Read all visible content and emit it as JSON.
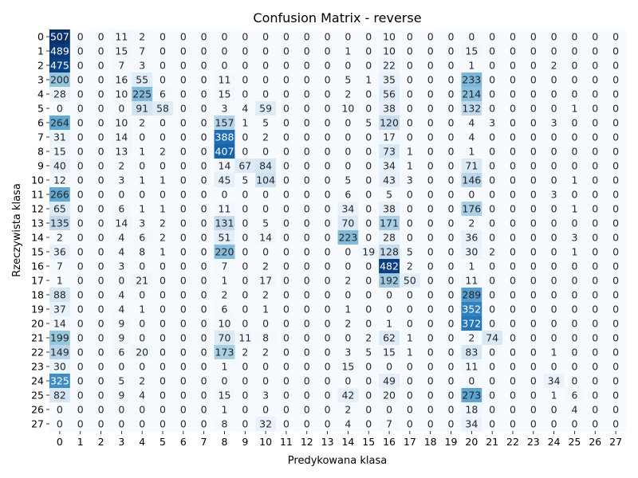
{
  "chart_data": {
    "type": "heatmap",
    "title": "Confusion Matrix - reverse",
    "xlabel": "Predykowana klasa",
    "ylabel": "Rzeczywista klasa",
    "x_ticks": [
      "0",
      "1",
      "2",
      "3",
      "4",
      "5",
      "6",
      "7",
      "8",
      "9",
      "10",
      "11",
      "12",
      "13",
      "14",
      "15",
      "16",
      "17",
      "18",
      "19",
      "20",
      "21",
      "22",
      "23",
      "24",
      "25",
      "26",
      "27"
    ],
    "y_ticks": [
      "0",
      "1",
      "2",
      "3",
      "4",
      "5",
      "6",
      "7",
      "8",
      "9",
      "10",
      "11",
      "12",
      "13",
      "14",
      "15",
      "16",
      "17",
      "18",
      "19",
      "20",
      "21",
      "22",
      "23",
      "24",
      "25",
      "26",
      "27"
    ],
    "colormap": "Blues",
    "vmin": 0,
    "vmax": 507,
    "colorbar": false,
    "values": [
      [
        507,
        0,
        0,
        11,
        2,
        0,
        0,
        0,
        0,
        0,
        0,
        0,
        0,
        0,
        0,
        0,
        10,
        0,
        0,
        0,
        0,
        0,
        0,
        0,
        0,
        0,
        0,
        0
      ],
      [
        489,
        0,
        0,
        15,
        7,
        0,
        0,
        0,
        0,
        0,
        0,
        0,
        0,
        0,
        1,
        0,
        10,
        0,
        0,
        0,
        15,
        0,
        0,
        0,
        0,
        0,
        0,
        0
      ],
      [
        475,
        0,
        0,
        7,
        3,
        0,
        0,
        0,
        0,
        0,
        0,
        0,
        0,
        0,
        0,
        0,
        22,
        0,
        0,
        0,
        1,
        0,
        0,
        0,
        2,
        0,
        0,
        0
      ],
      [
        200,
        0,
        0,
        16,
        55,
        0,
        0,
        0,
        11,
        0,
        0,
        0,
        0,
        0,
        5,
        1,
        35,
        0,
        0,
        0,
        233,
        0,
        0,
        0,
        0,
        0,
        0,
        0
      ],
      [
        28,
        0,
        0,
        10,
        225,
        6,
        0,
        0,
        15,
        0,
        0,
        0,
        0,
        0,
        2,
        0,
        56,
        0,
        0,
        0,
        214,
        0,
        0,
        0,
        0,
        0,
        0,
        0
      ],
      [
        0,
        0,
        0,
        0,
        91,
        58,
        0,
        0,
        3,
        4,
        59,
        0,
        0,
        0,
        10,
        0,
        38,
        0,
        0,
        0,
        132,
        0,
        0,
        0,
        0,
        1,
        0,
        0
      ],
      [
        264,
        0,
        0,
        10,
        2,
        0,
        0,
        0,
        157,
        1,
        5,
        0,
        0,
        0,
        0,
        5,
        120,
        0,
        0,
        0,
        4,
        3,
        0,
        0,
        3,
        0,
        0,
        0
      ],
      [
        31,
        0,
        0,
        14,
        0,
        0,
        0,
        0,
        388,
        0,
        2,
        0,
        0,
        0,
        0,
        0,
        17,
        0,
        0,
        0,
        4,
        0,
        0,
        0,
        0,
        0,
        0,
        0
      ],
      [
        15,
        0,
        0,
        13,
        1,
        2,
        0,
        0,
        407,
        0,
        0,
        0,
        0,
        0,
        0,
        0,
        73,
        1,
        0,
        0,
        1,
        0,
        0,
        0,
        0,
        0,
        0,
        0
      ],
      [
        40,
        0,
        0,
        2,
        0,
        0,
        0,
        0,
        14,
        67,
        84,
        0,
        0,
        0,
        0,
        0,
        34,
        1,
        0,
        0,
        71,
        0,
        0,
        0,
        0,
        0,
        0,
        0
      ],
      [
        12,
        0,
        0,
        3,
        1,
        1,
        0,
        0,
        45,
        5,
        104,
        0,
        0,
        0,
        5,
        0,
        43,
        3,
        0,
        0,
        146,
        0,
        0,
        0,
        0,
        1,
        0,
        0
      ],
      [
        266,
        0,
        0,
        0,
        0,
        0,
        0,
        0,
        0,
        0,
        0,
        0,
        0,
        0,
        6,
        0,
        5,
        0,
        0,
        0,
        0,
        0,
        0,
        0,
        3,
        0,
        0,
        0
      ],
      [
        65,
        0,
        0,
        6,
        1,
        1,
        0,
        0,
        11,
        0,
        0,
        0,
        0,
        0,
        34,
        0,
        38,
        0,
        0,
        0,
        176,
        0,
        0,
        0,
        0,
        1,
        0,
        0
      ],
      [
        135,
        0,
        0,
        14,
        3,
        2,
        0,
        0,
        131,
        0,
        5,
        0,
        0,
        0,
        70,
        0,
        171,
        0,
        0,
        0,
        2,
        0,
        0,
        0,
        0,
        0,
        0,
        0
      ],
      [
        2,
        0,
        0,
        4,
        6,
        2,
        0,
        0,
        51,
        0,
        14,
        0,
        0,
        0,
        223,
        0,
        28,
        0,
        0,
        0,
        36,
        0,
        0,
        0,
        0,
        3,
        0,
        0
      ],
      [
        36,
        0,
        0,
        4,
        8,
        1,
        0,
        0,
        220,
        0,
        0,
        0,
        0,
        0,
        0,
        19,
        128,
        5,
        0,
        0,
        30,
        2,
        0,
        0,
        0,
        1,
        0,
        0
      ],
      [
        7,
        0,
        0,
        3,
        0,
        0,
        0,
        0,
        7,
        0,
        2,
        0,
        0,
        0,
        0,
        0,
        482,
        2,
        0,
        0,
        1,
        0,
        0,
        0,
        0,
        0,
        0,
        0
      ],
      [
        1,
        0,
        0,
        0,
        21,
        0,
        0,
        0,
        1,
        0,
        17,
        0,
        0,
        0,
        2,
        0,
        192,
        50,
        0,
        0,
        11,
        0,
        0,
        0,
        0,
        0,
        0,
        0
      ],
      [
        88,
        0,
        0,
        4,
        0,
        0,
        0,
        0,
        2,
        0,
        2,
        0,
        0,
        0,
        0,
        0,
        0,
        0,
        0,
        0,
        289,
        0,
        0,
        0,
        0,
        0,
        0,
        0
      ],
      [
        37,
        0,
        0,
        4,
        1,
        0,
        0,
        0,
        6,
        0,
        1,
        0,
        0,
        0,
        1,
        0,
        0,
        0,
        0,
        0,
        352,
        0,
        0,
        0,
        0,
        0,
        0,
        0
      ],
      [
        14,
        0,
        0,
        9,
        0,
        0,
        0,
        0,
        10,
        0,
        0,
        0,
        0,
        0,
        2,
        0,
        1,
        0,
        0,
        0,
        372,
        0,
        0,
        0,
        0,
        0,
        0,
        0
      ],
      [
        199,
        0,
        0,
        9,
        0,
        0,
        0,
        0,
        70,
        11,
        8,
        0,
        0,
        0,
        0,
        2,
        62,
        1,
        0,
        0,
        2,
        74,
        0,
        0,
        0,
        0,
        0,
        0
      ],
      [
        149,
        0,
        0,
        6,
        20,
        0,
        0,
        0,
        173,
        2,
        2,
        0,
        0,
        0,
        3,
        5,
        15,
        1,
        0,
        0,
        83,
        0,
        0,
        0,
        1,
        0,
        0,
        0
      ],
      [
        30,
        0,
        0,
        0,
        0,
        0,
        0,
        0,
        1,
        0,
        0,
        0,
        0,
        0,
        15,
        0,
        0,
        0,
        0,
        0,
        11,
        0,
        0,
        0,
        0,
        0,
        0,
        0
      ],
      [
        325,
        0,
        0,
        5,
        2,
        0,
        0,
        0,
        0,
        0,
        0,
        0,
        0,
        0,
        0,
        0,
        49,
        0,
        0,
        0,
        0,
        0,
        0,
        0,
        34,
        0,
        0,
        0
      ],
      [
        82,
        0,
        0,
        9,
        4,
        0,
        0,
        0,
        15,
        0,
        3,
        0,
        0,
        0,
        42,
        0,
        20,
        0,
        0,
        0,
        273,
        0,
        0,
        0,
        1,
        6,
        0,
        0
      ],
      [
        0,
        0,
        0,
        0,
        0,
        0,
        0,
        0,
        1,
        0,
        0,
        0,
        0,
        0,
        2,
        0,
        0,
        0,
        0,
        0,
        18,
        0,
        0,
        0,
        0,
        4,
        0,
        0
      ],
      [
        0,
        0,
        0,
        0,
        0,
        0,
        0,
        0,
        8,
        0,
        32,
        0,
        0,
        0,
        4,
        0,
        7,
        0,
        0,
        0,
        34,
        0,
        0,
        0,
        0,
        0,
        0,
        0
      ]
    ]
  }
}
